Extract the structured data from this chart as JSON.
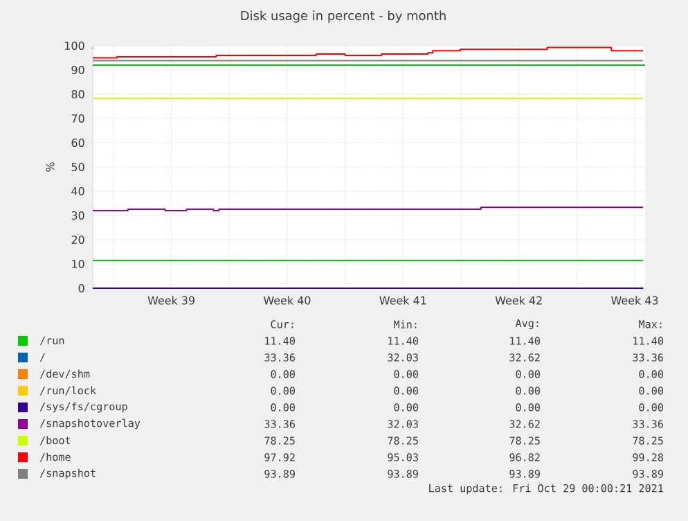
{
  "chart_data": {
    "type": "step",
    "title": "Disk usage in percent - by month",
    "ylabel": "%",
    "xlim": [
      "2021-09-25T18:00",
      "2021-10-29T03:00"
    ],
    "xticks": [
      {
        "value": "2021-09-27",
        "label": null
      },
      {
        "value": "2021-09-30T12:00",
        "label": "Week 39"
      },
      {
        "value": "2021-10-04",
        "label": null
      },
      {
        "value": "2021-10-07T12:00",
        "label": "Week 40"
      },
      {
        "value": "2021-10-11",
        "label": null
      },
      {
        "value": "2021-10-14T12:00",
        "label": "Week 41"
      },
      {
        "value": "2021-10-18",
        "label": null
      },
      {
        "value": "2021-10-21T12:00",
        "label": "Week 42"
      },
      {
        "value": "2021-10-25",
        "label": null
      },
      {
        "value": "2021-10-28T12:00",
        "label": "Week 43"
      }
    ],
    "ylim": [
      0,
      100
    ],
    "yticks": [
      0,
      10,
      20,
      30,
      40,
      50,
      60,
      70,
      80,
      90,
      100
    ],
    "grid": true,
    "legend": "bottom",
    "ref_lines": [
      {
        "axis": "y",
        "value": 92,
        "color": "#00cc00"
      }
    ],
    "series": [
      {
        "name": "/run",
        "color": "#00cc00",
        "x": [
          "2021-09-25T18:00",
          "2021-10-29T00:00"
        ],
        "values": [
          11.4,
          11.4
        ]
      },
      {
        "name": "/",
        "color": "#0066b3",
        "values": [
          null,
          null
        ]
      },
      {
        "name": "/dev/shm",
        "color": "#ff8000",
        "values": [
          null,
          null
        ]
      },
      {
        "name": "/run/lock",
        "color": "#ffcc00",
        "values": [
          null,
          null
        ]
      },
      {
        "name": "/sys/fs/cgroup",
        "color": "#330099",
        "x": [
          "2021-09-25T18:00",
          "2021-10-29T00:00"
        ],
        "values": [
          0,
          0
        ]
      },
      {
        "name": "/snapshotoverlay",
        "color": "#990099",
        "x": [
          "2021-09-25T18:00",
          "2021-09-27T21:00",
          "2021-09-30T03:00",
          "2021-10-01T10:00",
          "2021-10-03T01:00",
          "2021-10-03T09:00",
          "2021-10-19T05:00",
          "2021-10-29T00:00"
        ],
        "values": [
          32.03,
          32.6,
          32.03,
          32.6,
          32.03,
          32.6,
          33.36,
          33.36
        ]
      },
      {
        "name": "/boot",
        "color": "#ccff00",
        "x": [
          "2021-09-25T18:00",
          "2021-10-29T00:00"
        ],
        "values": [
          78.25,
          78.25
        ]
      },
      {
        "name": "/home",
        "color": "#ff0000",
        "x": [
          "2021-09-25T18:00",
          "2021-09-27T05:00",
          "2021-10-03T05:00",
          "2021-10-09T06:00",
          "2021-10-11T00:00",
          "2021-10-13T05:00",
          "2021-10-16T00:00",
          "2021-10-16T07:00",
          "2021-10-17T23:00",
          "2021-10-23T05:00",
          "2021-10-27T02:00",
          "2021-10-29T00:00"
        ],
        "values": [
          95.03,
          95.4,
          96.0,
          96.6,
          96.0,
          96.6,
          97.1,
          97.9,
          98.5,
          99.28,
          97.92,
          97.92
        ]
      },
      {
        "name": "/snapshot",
        "color": "#808080",
        "x": [
          "2021-09-25T18:00",
          "2021-10-29T00:00"
        ],
        "values": [
          93.89,
          93.89
        ]
      }
    ],
    "annotations": [
      "Cur:",
      "Min:",
      "Avg:",
      "Max:",
      "11.40",
      "11.40",
      "11.40",
      "11.40",
      "33.36",
      "32.03",
      "32.62",
      "33.36",
      "0.00",
      "0.00",
      "0.00",
      "0.00",
      "0.00",
      "0.00",
      "0.00",
      "0.00",
      "0.00",
      "0.00",
      "0.00",
      "0.00",
      "33.36",
      "32.03",
      "32.62",
      "33.36",
      "78.25",
      "78.25",
      "78.25",
      "78.25",
      "97.92",
      "95.03",
      "96.82",
      "99.28",
      "93.89",
      "93.89",
      "93.89",
      "93.89",
      "Last update: Fri Oct 29 00:00:21 2021"
    ]
  }
}
